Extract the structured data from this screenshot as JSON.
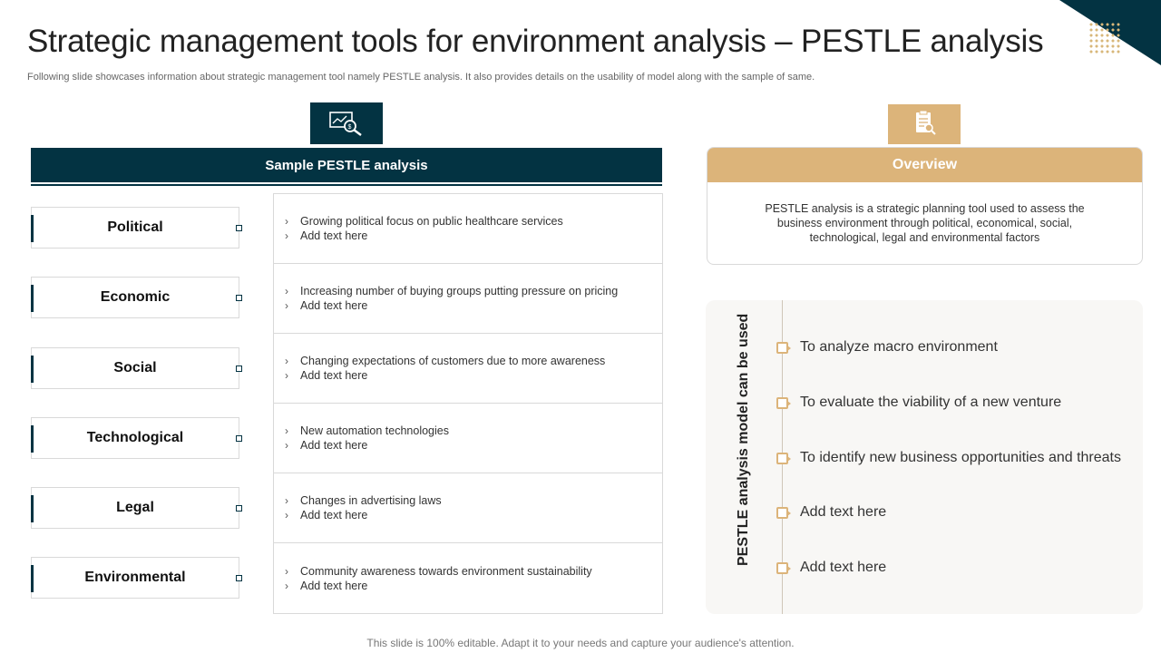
{
  "title": "Strategic management tools for environment analysis – PESTLE analysis",
  "subtitle": "Following slide showcases information about strategic management tool namely PESTLE analysis. It also provides details on the usability of model along with the sample of same.",
  "left": {
    "header": "Sample PESTLE analysis",
    "icon": "analytics-search-icon",
    "factors": [
      {
        "label": "Political",
        "lines": [
          "Growing political focus on public healthcare services",
          "Add text here"
        ]
      },
      {
        "label": "Economic",
        "lines": [
          "Increasing number of buying groups putting pressure on pricing",
          "Add text here"
        ]
      },
      {
        "label": "Social",
        "lines": [
          "Changing expectations of customers due to more awareness",
          "Add text here"
        ]
      },
      {
        "label": "Technological",
        "lines": [
          "New automation technologies",
          "Add text here"
        ]
      },
      {
        "label": "Legal",
        "lines": [
          "Changes in advertising laws",
          "Add text here"
        ]
      },
      {
        "label": "Environmental",
        "lines": [
          "Community awareness towards environment  sustainability",
          "Add text here"
        ]
      }
    ]
  },
  "right": {
    "icon": "document-search-icon",
    "overview_title": "Overview",
    "overview_text": "PESTLE analysis is a strategic planning tool used to assess the business environment  through political, economical, social, technological, legal and environmental  factors",
    "uses_title": "PESTLE analysis model can be used",
    "uses": [
      "To analyze  macro environment",
      "To evaluate  the viability of a new venture",
      "To identify new business opportunities and threats",
      "Add text here",
      "Add text here"
    ]
  },
  "footer": "This slide is 100% editable. Adapt it to your needs and capture your audience's attention.",
  "colors": {
    "navy": "#033342",
    "gold": "#dcb47a"
  }
}
